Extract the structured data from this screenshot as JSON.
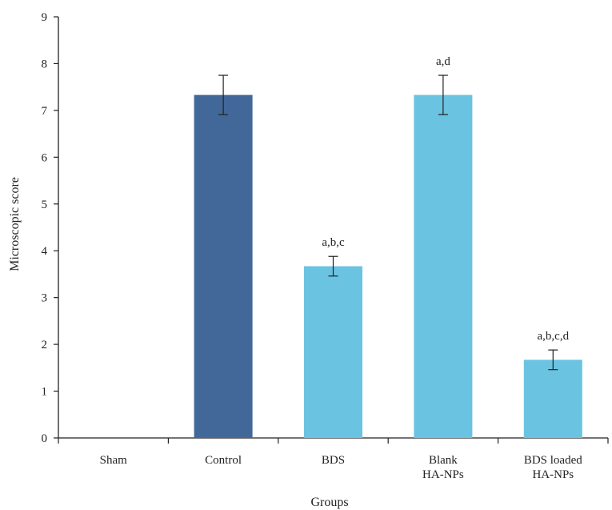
{
  "chart_data": {
    "type": "bar",
    "title": "",
    "xlabel": "Groups",
    "ylabel": "Microscopic score",
    "ylim": [
      0,
      9
    ],
    "yticks": [
      0,
      1,
      2,
      3,
      4,
      5,
      6,
      7,
      8,
      9
    ],
    "grid": false,
    "legend": "none",
    "categories": [
      {
        "lines": [
          "Sham"
        ]
      },
      {
        "lines": [
          "Control"
        ]
      },
      {
        "lines": [
          "BDS"
        ]
      },
      {
        "lines": [
          "Blank",
          "HA-NPs"
        ]
      },
      {
        "lines": [
          "BDS loaded",
          "HA-NPs"
        ]
      }
    ],
    "values": [
      0,
      7.33,
      3.67,
      7.33,
      1.67
    ],
    "errors": [
      0,
      0.42,
      0.21,
      0.42,
      0.21
    ],
    "annotations": [
      "",
      "",
      "a,b,c",
      "a,d",
      "a,b,c,d"
    ],
    "colors": [
      "#6ac3e0",
      "#426899",
      "#6ac3e0",
      "#6ac3e0",
      "#6ac3e0"
    ]
  }
}
